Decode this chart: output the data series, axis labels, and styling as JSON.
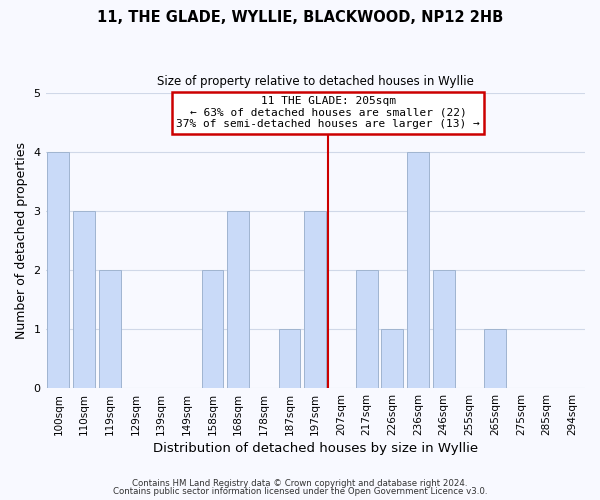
{
  "title": "11, THE GLADE, WYLLIE, BLACKWOOD, NP12 2HB",
  "subtitle": "Size of property relative to detached houses in Wyllie",
  "xlabel": "Distribution of detached houses by size in Wyllie",
  "ylabel": "Number of detached properties",
  "footer_lines": [
    "Contains HM Land Registry data © Crown copyright and database right 2024.",
    "Contains public sector information licensed under the Open Government Licence v3.0."
  ],
  "bin_labels": [
    "100sqm",
    "110sqm",
    "119sqm",
    "129sqm",
    "139sqm",
    "149sqm",
    "158sqm",
    "168sqm",
    "178sqm",
    "187sqm",
    "197sqm",
    "207sqm",
    "217sqm",
    "226sqm",
    "236sqm",
    "246sqm",
    "255sqm",
    "265sqm",
    "275sqm",
    "285sqm",
    "294sqm"
  ],
  "bar_values": [
    4,
    3,
    2,
    0,
    0,
    0,
    2,
    3,
    0,
    1,
    3,
    0,
    2,
    1,
    4,
    2,
    0,
    1,
    0,
    0,
    0
  ],
  "bar_color": "#c9daf8",
  "bar_edge_color": "#a0b4d0",
  "subject_line_index": 11,
  "subject_line_label": "11 THE GLADE: 205sqm",
  "annotation_line1": "← 63% of detached houses are smaller (22)",
  "annotation_line2": "37% of semi-detached houses are larger (13) →",
  "annotation_box_color": "#ffffff",
  "annotation_box_edge": "#cc0000",
  "subject_line_color": "#cc0000",
  "ylim": [
    0,
    5
  ],
  "yticks": [
    0,
    1,
    2,
    3,
    4,
    5
  ],
  "grid_color": "#d0d8e8",
  "bg_color": "#f8f9ff"
}
